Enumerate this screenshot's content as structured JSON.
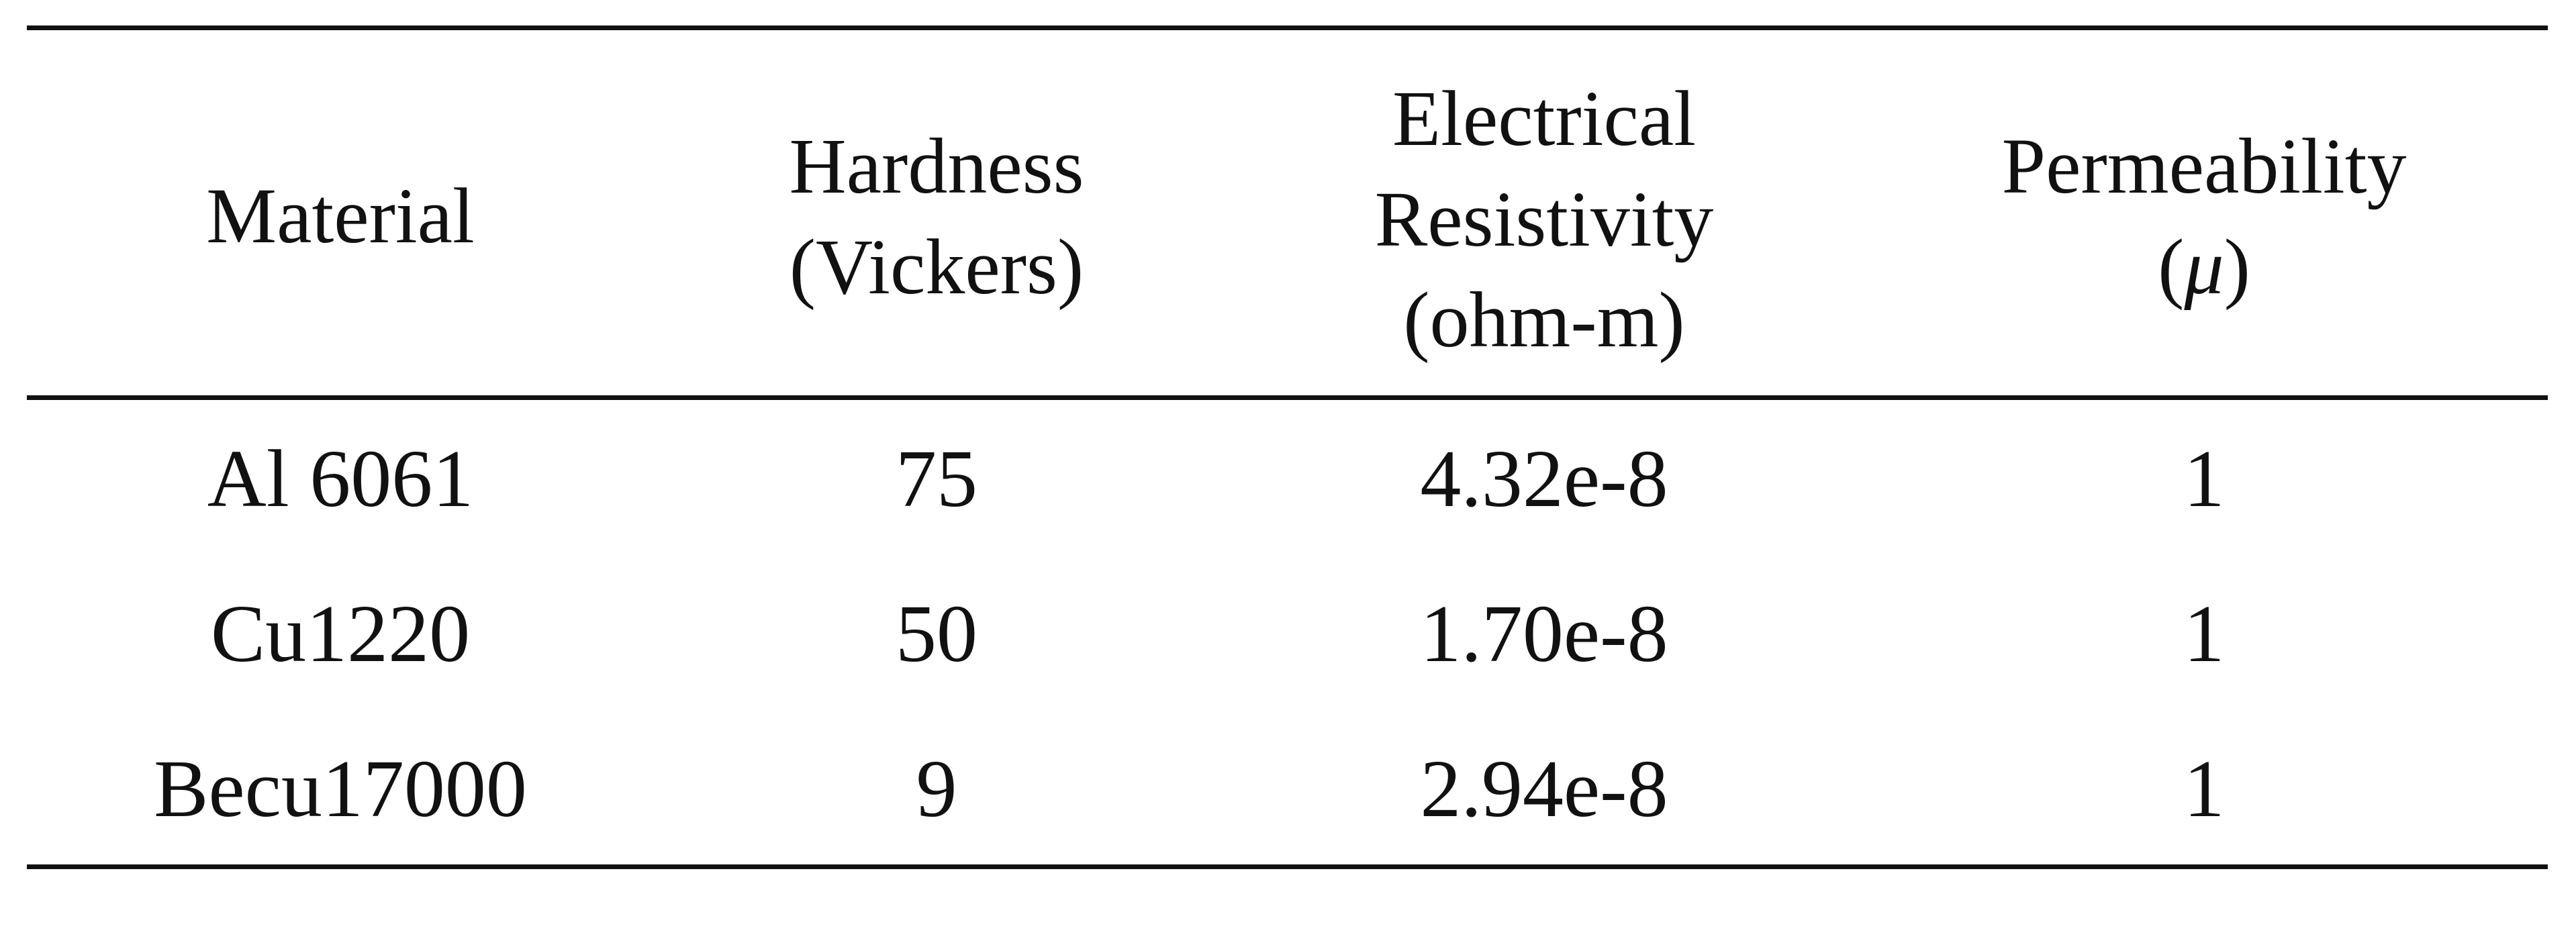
{
  "table": {
    "headers": [
      {
        "lines": [
          "Material"
        ]
      },
      {
        "lines": [
          "Hardness",
          "(Vickers)"
        ]
      },
      {
        "lines": [
          "Electrical",
          "Resistivity",
          "(ohm-m)"
        ]
      },
      {
        "lines": [
          "Permeability",
          "(",
          "μ",
          ")"
        ]
      }
    ],
    "rows": [
      [
        "Al 6061",
        "75",
        "4.32e-8",
        "1"
      ],
      [
        "Cu1220",
        "50",
        "1.70e-8",
        "1"
      ],
      [
        "Becu17000",
        "9",
        "2.94e-8",
        "1"
      ]
    ]
  }
}
